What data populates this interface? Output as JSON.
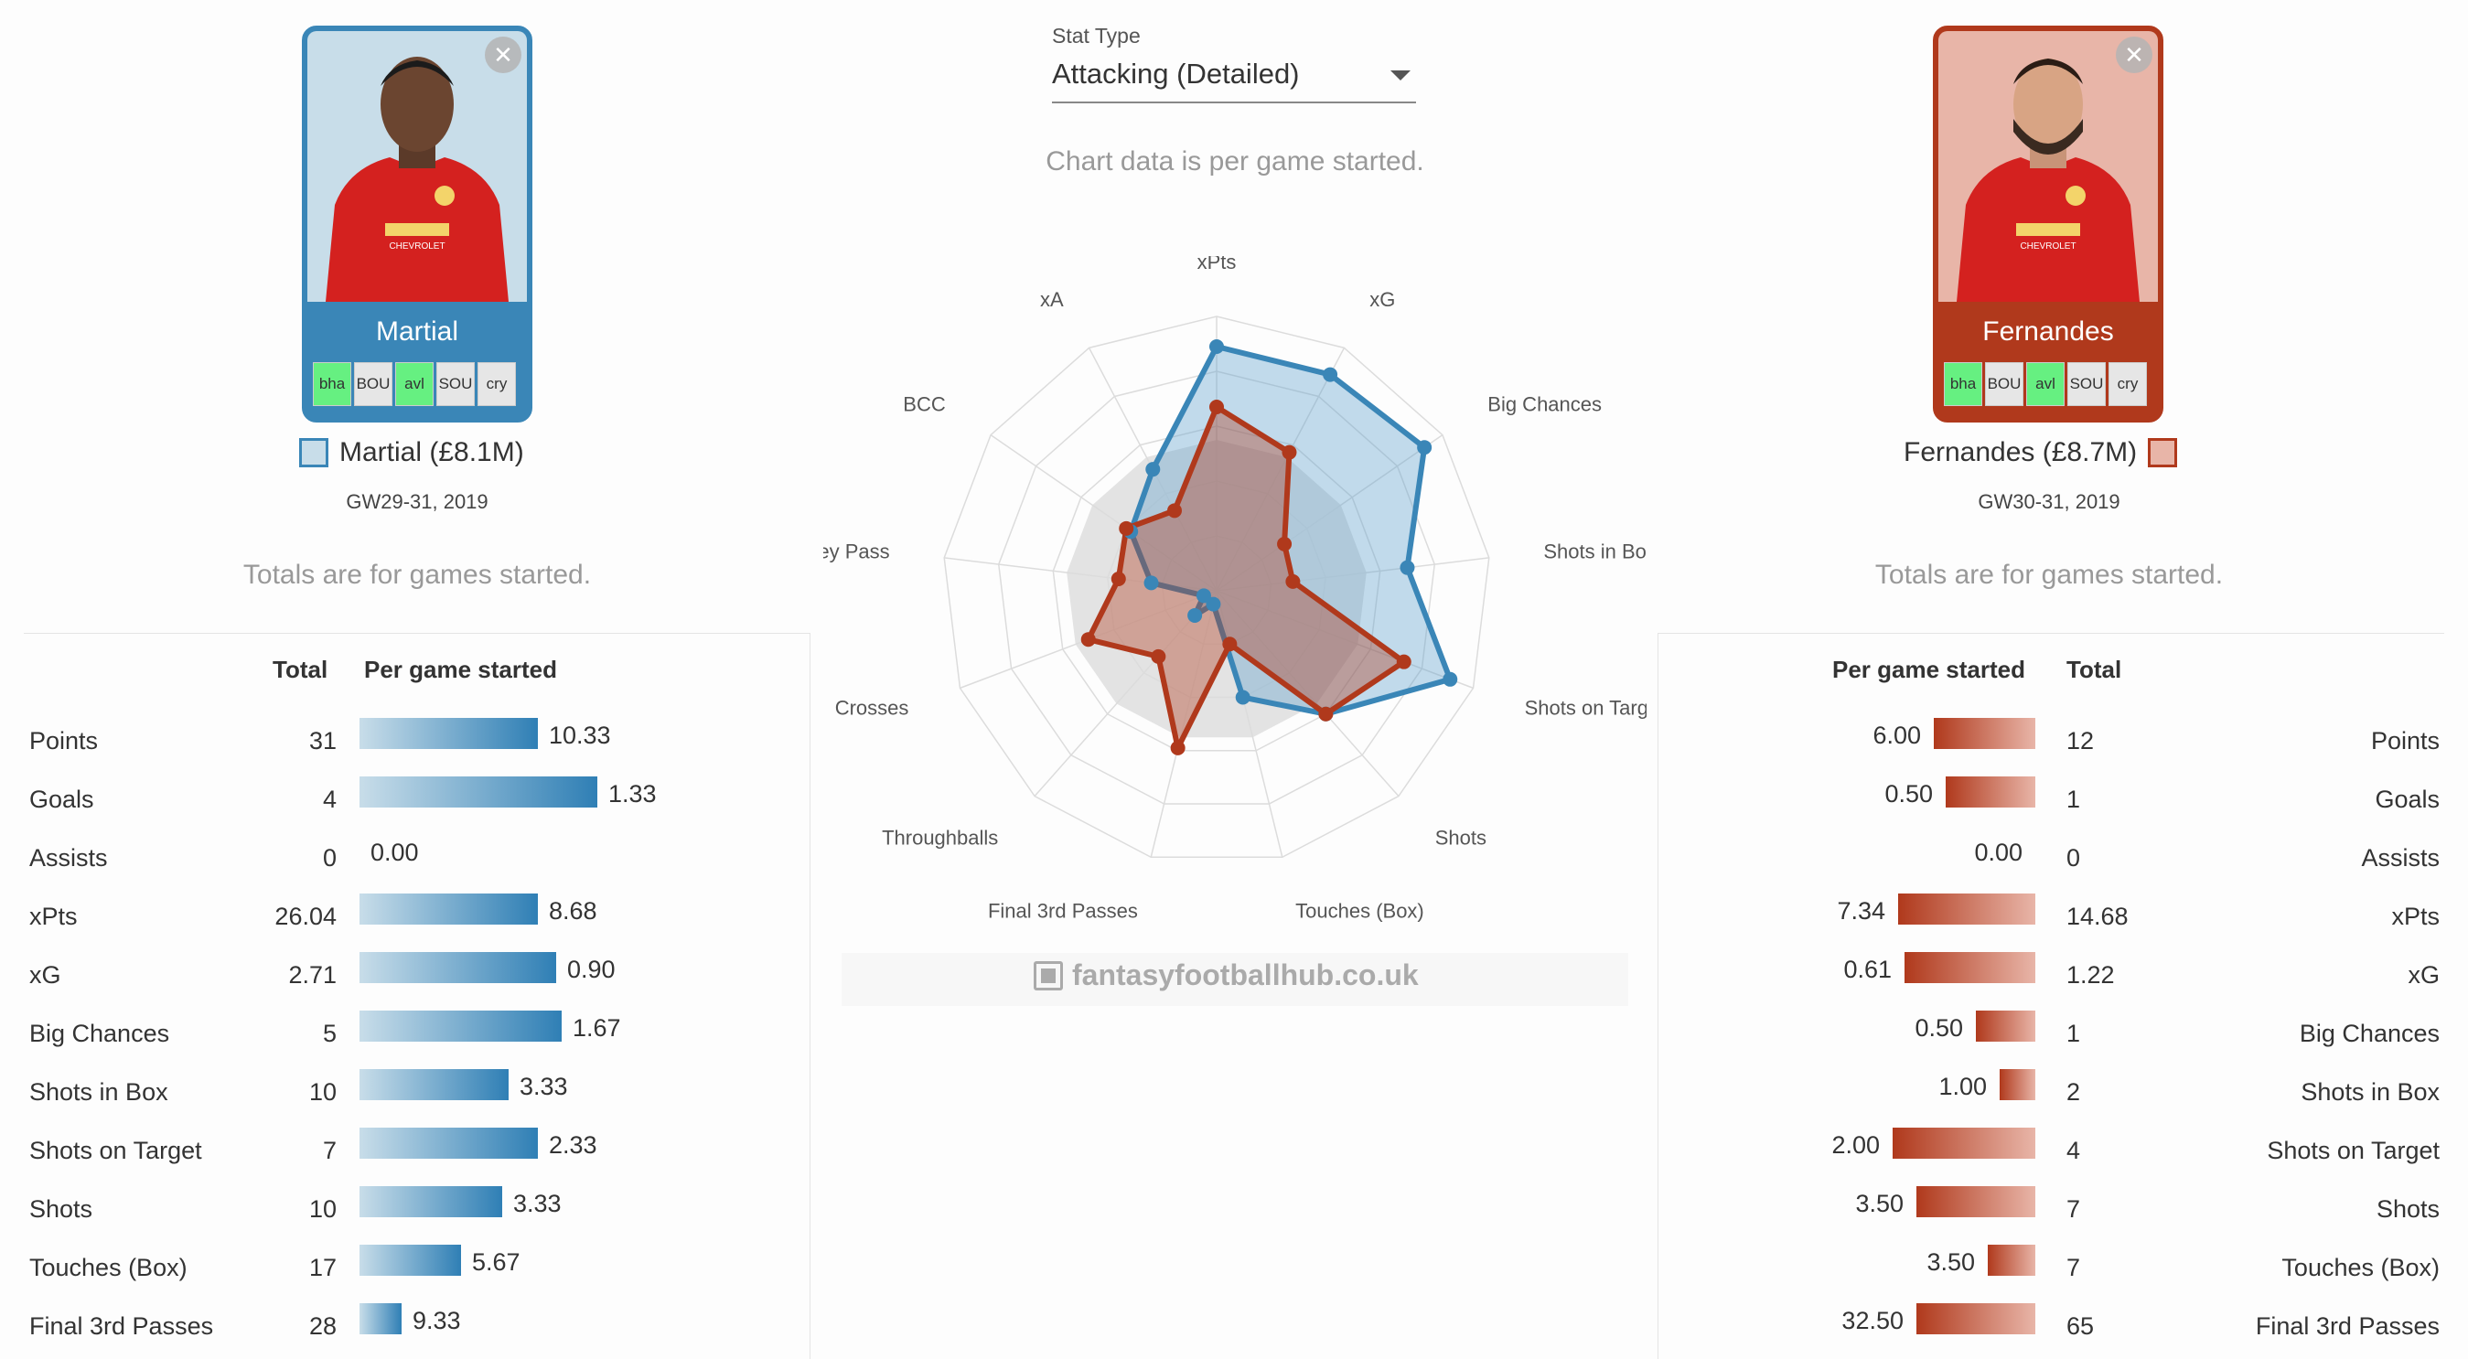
{
  "stat_type": {
    "label": "Stat Type",
    "value": "Attacking (Detailed)"
  },
  "chart_note": "Chart data is per game started.",
  "totals_note": "Totals are for games started.",
  "watermark": "fantasyfootballhub.co.uk",
  "colors": {
    "left": "#3a86b7",
    "left_fill": "#c8dde9",
    "right": "#b0391c",
    "right_fill": "#e8b5a8",
    "fixture_easy": "#66f081"
  },
  "left_player": {
    "name": "Martial",
    "legend": "Martial (£8.1M)",
    "gameweeks": "GW29-31, 2019",
    "fixtures": [
      {
        "code": "bha",
        "easy": true
      },
      {
        "code": "BOU",
        "easy": false
      },
      {
        "code": "avl",
        "easy": true
      },
      {
        "code": "SOU",
        "easy": false
      },
      {
        "code": "cry",
        "easy": false
      }
    ],
    "headers": {
      "total": "Total",
      "per_game": "Per game started"
    },
    "rows": [
      {
        "label": "Points",
        "total": "31",
        "per_game": "10.33",
        "fraction": 0.3
      },
      {
        "label": "Goals",
        "total": "4",
        "per_game": "1.33",
        "fraction": 0.4
      },
      {
        "label": "Assists",
        "total": "0",
        "per_game": "0.00",
        "fraction": 0
      },
      {
        "label": "xPts",
        "total": "26.04",
        "per_game": "8.68",
        "fraction": 0.3
      },
      {
        "label": "xG",
        "total": "2.71",
        "per_game": "0.90",
        "fraction": 0.33
      },
      {
        "label": "Big Chances",
        "total": "5",
        "per_game": "1.67",
        "fraction": 0.34
      },
      {
        "label": "Shots in Box",
        "total": "10",
        "per_game": "3.33",
        "fraction": 0.25
      },
      {
        "label": "Shots on Target",
        "total": "7",
        "per_game": "2.33",
        "fraction": 0.3
      },
      {
        "label": "Shots",
        "total": "10",
        "per_game": "3.33",
        "fraction": 0.24
      },
      {
        "label": "Touches (Box)",
        "total": "17",
        "per_game": "5.67",
        "fraction": 0.17
      },
      {
        "label": "Final 3rd Passes",
        "total": "28",
        "per_game": "9.33",
        "fraction": 0.07
      }
    ]
  },
  "right_player": {
    "name": "Fernandes",
    "legend": "Fernandes (£8.7M)",
    "gameweeks": "GW30-31, 2019",
    "fixtures": [
      {
        "code": "bha",
        "easy": true
      },
      {
        "code": "BOU",
        "easy": false
      },
      {
        "code": "avl",
        "easy": true
      },
      {
        "code": "SOU",
        "easy": false
      },
      {
        "code": "cry",
        "easy": false
      }
    ],
    "headers": {
      "total": "Total",
      "per_game": "Per game started"
    },
    "rows": [
      {
        "label": "Points",
        "total": "12",
        "per_game": "6.00",
        "fraction": 0.17
      },
      {
        "label": "Goals",
        "total": "1",
        "per_game": "0.50",
        "fraction": 0.15
      },
      {
        "label": "Assists",
        "total": "0",
        "per_game": "0.00",
        "fraction": 0
      },
      {
        "label": "xPts",
        "total": "14.68",
        "per_game": "7.34",
        "fraction": 0.23
      },
      {
        "label": "xG",
        "total": "1.22",
        "per_game": "0.61",
        "fraction": 0.22
      },
      {
        "label": "Big Chances",
        "total": "1",
        "per_game": "0.50",
        "fraction": 0.1
      },
      {
        "label": "Shots in Box",
        "total": "2",
        "per_game": "1.00",
        "fraction": 0.06
      },
      {
        "label": "Shots on Target",
        "total": "4",
        "per_game": "2.00",
        "fraction": 0.24
      },
      {
        "label": "Shots",
        "total": "7",
        "per_game": "3.50",
        "fraction": 0.2
      },
      {
        "label": "Touches (Box)",
        "total": "7",
        "per_game": "3.50",
        "fraction": 0.08
      },
      {
        "label": "Final 3rd Passes",
        "total": "65",
        "per_game": "32.50",
        "fraction": 0.2
      }
    ]
  },
  "chart_data": {
    "type": "radar",
    "axes": [
      "xPts",
      "xG",
      "Big Chances",
      "Shots in Box",
      "Shots on Target",
      "Shots",
      "Touches (Box)",
      "Final 3rd Passes",
      "Throughballs",
      "Crosses",
      "Key Pass",
      "BCC",
      "xA"
    ],
    "range": [
      0,
      1
    ],
    "series": [
      {
        "name": "Martial (£8.1M)",
        "color": "#3a86b7",
        "values": [
          0.89,
          0.89,
          0.92,
          0.7,
          0.91,
          0.6,
          0.4,
          0.05,
          0.12,
          0.05,
          0.24,
          0.38,
          0.5
        ]
      },
      {
        "name": "Fernandes (£8.7M)",
        "color": "#b0391c",
        "values": [
          0.67,
          0.57,
          0.3,
          0.28,
          0.73,
          0.6,
          0.2,
          0.59,
          0.32,
          0.5,
          0.36,
          0.4,
          0.33
        ]
      }
    ],
    "background_area": [
      0.55,
      0.55,
      0.55,
      0.55,
      0.55,
      0.55,
      0.55,
      0.55,
      0.55,
      0.55,
      0.55,
      0.55,
      0.55
    ]
  }
}
